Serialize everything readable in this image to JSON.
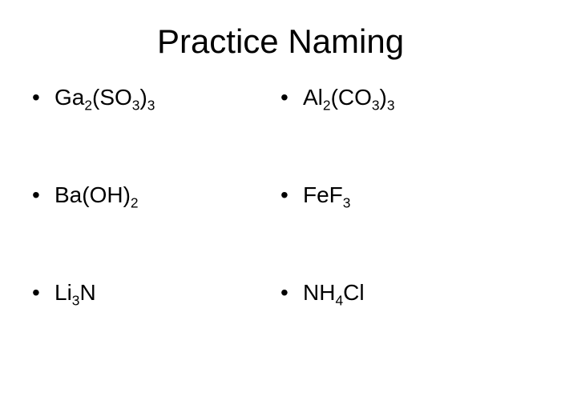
{
  "title": "Practice Naming",
  "left": [
    {
      "parts": [
        "Ga",
        "2",
        "(SO",
        "3",
        ")",
        "3"
      ]
    },
    {
      "parts": [
        "Ba(OH)",
        "2"
      ]
    },
    {
      "parts": [
        "Li",
        "3",
        "N"
      ]
    }
  ],
  "right": [
    {
      "parts": [
        "Al",
        "2",
        "(CO",
        "3",
        ")",
        "3"
      ]
    },
    {
      "parts": [
        "FeF",
        "3"
      ]
    },
    {
      "parts": [
        "NH",
        "4",
        "Cl"
      ]
    }
  ],
  "style": {
    "background_color": "#ffffff",
    "text_color": "#000000",
    "title_fontsize": 42,
    "body_fontsize": 28,
    "font_family": "Arial"
  }
}
